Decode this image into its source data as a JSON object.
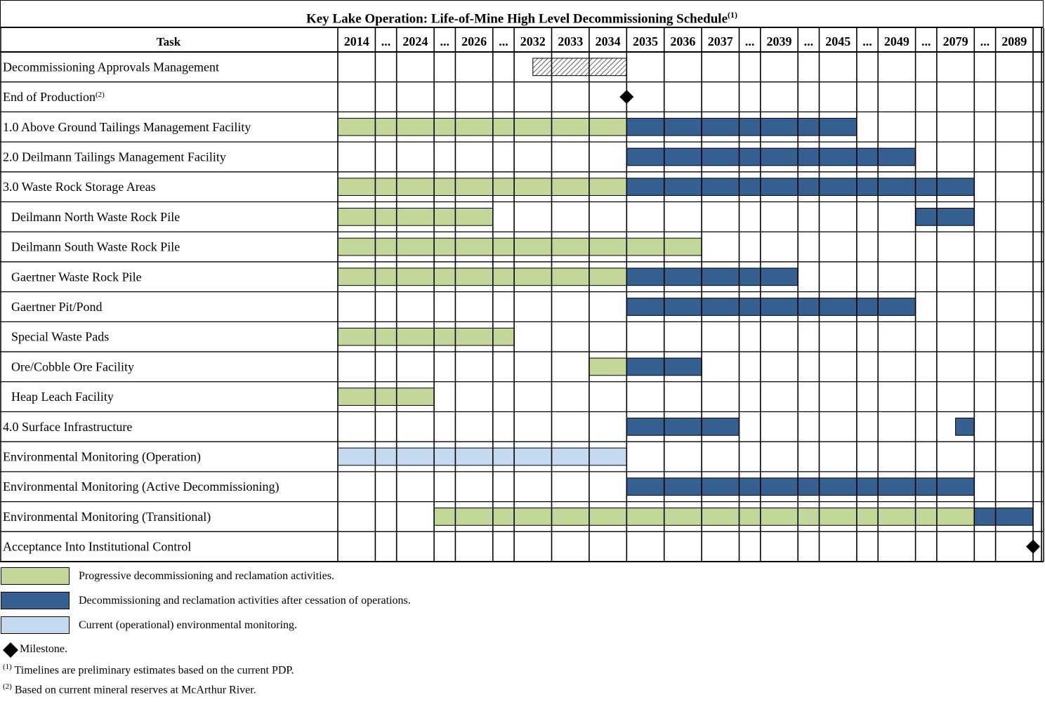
{
  "chart_data": {
    "type": "gantt",
    "title": "Key Lake Operation: Life-of-Mine High Level Decommissioning Schedule",
    "title_note": "(1)",
    "task_header": "Task",
    "columns": [
      "2014",
      "...",
      "2024",
      "...",
      "2026",
      "...",
      "2032",
      "2033",
      "2034",
      "2035",
      "2036",
      "2037",
      "...",
      "2039",
      "...",
      "2045",
      "...",
      "2049",
      "...",
      "2079",
      "...",
      "2089",
      ""
    ],
    "bold_columns": [
      "2049",
      "2079",
      "2089"
    ],
    "colors": {
      "progressive": "#c4d79b",
      "post_operations": "#366092",
      "monitoring": "#c5d9f1",
      "milestone": "#000000"
    },
    "tasks": [
      {
        "label": "Decommissioning Approvals Management",
        "indent": false,
        "bars": [
          {
            "kind": "approvals",
            "start_col": 6,
            "start_frac": 0.5,
            "end_col": 8
          }
        ]
      },
      {
        "label": "End of Production",
        "note": "(2)",
        "indent": false,
        "milestones": [
          {
            "after_col": 8
          }
        ]
      },
      {
        "label": "1.0 Above Ground Tailings Management Facility",
        "indent": false,
        "bars": [
          {
            "kind": "progressive",
            "start_col": 0,
            "end_col": 8
          },
          {
            "kind": "post_operations",
            "start_col": 9,
            "end_col": 15
          }
        ]
      },
      {
        "label": "2.0 Deilmann Tailings Management Facility",
        "indent": false,
        "bars": [
          {
            "kind": "post_operations",
            "start_col": 9,
            "end_col": 17
          }
        ]
      },
      {
        "label": "3.0 Waste Rock Storage Areas",
        "indent": false,
        "bars": [
          {
            "kind": "progressive",
            "start_col": 0,
            "end_col": 8
          },
          {
            "kind": "post_operations",
            "start_col": 9,
            "end_col": 19
          }
        ]
      },
      {
        "label": "Deilmann North Waste Rock Pile",
        "indent": true,
        "bars": [
          {
            "kind": "progressive",
            "start_col": 0,
            "end_col": 4
          },
          {
            "kind": "post_operations",
            "start_col": 18,
            "end_col": 19
          }
        ]
      },
      {
        "label": "Deilmann South Waste Rock Pile",
        "indent": true,
        "bars": [
          {
            "kind": "progressive",
            "start_col": 0,
            "end_col": 10
          }
        ]
      },
      {
        "label": "Gaertner Waste Rock Pile",
        "indent": true,
        "bars": [
          {
            "kind": "progressive",
            "start_col": 0,
            "end_col": 8
          },
          {
            "kind": "post_operations",
            "start_col": 9,
            "end_col": 13
          }
        ]
      },
      {
        "label": "Gaertner Pit/Pond",
        "indent": true,
        "bars": [
          {
            "kind": "post_operations",
            "start_col": 9,
            "end_col": 17
          }
        ]
      },
      {
        "label": "Special Waste Pads",
        "indent": true,
        "bars": [
          {
            "kind": "progressive",
            "start_col": 0,
            "end_col": 5
          }
        ]
      },
      {
        "label": "Ore/Cobble Ore Facility",
        "indent": true,
        "bars": [
          {
            "kind": "progressive",
            "start_col": 8,
            "end_col": 8
          },
          {
            "kind": "post_operations",
            "start_col": 9,
            "end_col": 10
          }
        ]
      },
      {
        "label": "Heap Leach Facility",
        "indent": true,
        "bars": [
          {
            "kind": "progressive",
            "start_col": 0,
            "end_col": 2
          }
        ]
      },
      {
        "label": "4.0 Surface Infrastructure",
        "indent": false,
        "bars": [
          {
            "kind": "post_operations",
            "start_col": 9,
            "end_col": 11
          },
          {
            "kind": "post_operations",
            "start_col": 19,
            "start_frac": 0.5,
            "end_col": 19
          }
        ]
      },
      {
        "label": "Environmental Monitoring (Operation)",
        "indent": false,
        "bars": [
          {
            "kind": "monitoring",
            "start_col": 0,
            "end_col": 8
          }
        ]
      },
      {
        "label": "Environmental Monitoring (Active Decommissioning)",
        "indent": false,
        "bars": [
          {
            "kind": "post_operations",
            "start_col": 9,
            "end_col": 19
          }
        ]
      },
      {
        "label": "Environmental Monitoring (Transitional)",
        "indent": false,
        "bars": [
          {
            "kind": "progressive",
            "start_col": 3,
            "end_col": 19
          },
          {
            "kind": "post_operations",
            "start_col": 20,
            "end_col": 21
          }
        ]
      },
      {
        "label": "Acceptance Into Institutional Control",
        "indent": false,
        "milestones": [
          {
            "after_col": 21
          }
        ]
      }
    ],
    "legend": [
      {
        "kind": "progressive",
        "label": "Progressive decommissioning and reclamation activities."
      },
      {
        "kind": "post_operations",
        "label": "Decommissioning and reclamation activities after cessation of operations."
      },
      {
        "kind": "monitoring",
        "label": "Current (operational) environmental monitoring."
      },
      {
        "kind": "milestone",
        "label": "Milestone."
      }
    ],
    "footnotes": [
      {
        "mark": "(1)",
        "text": "Timelines are preliminary estimates based on the current PDP."
      },
      {
        "mark": "(2)",
        "text": "Based on current mineral reserves at McArthur River."
      }
    ]
  }
}
